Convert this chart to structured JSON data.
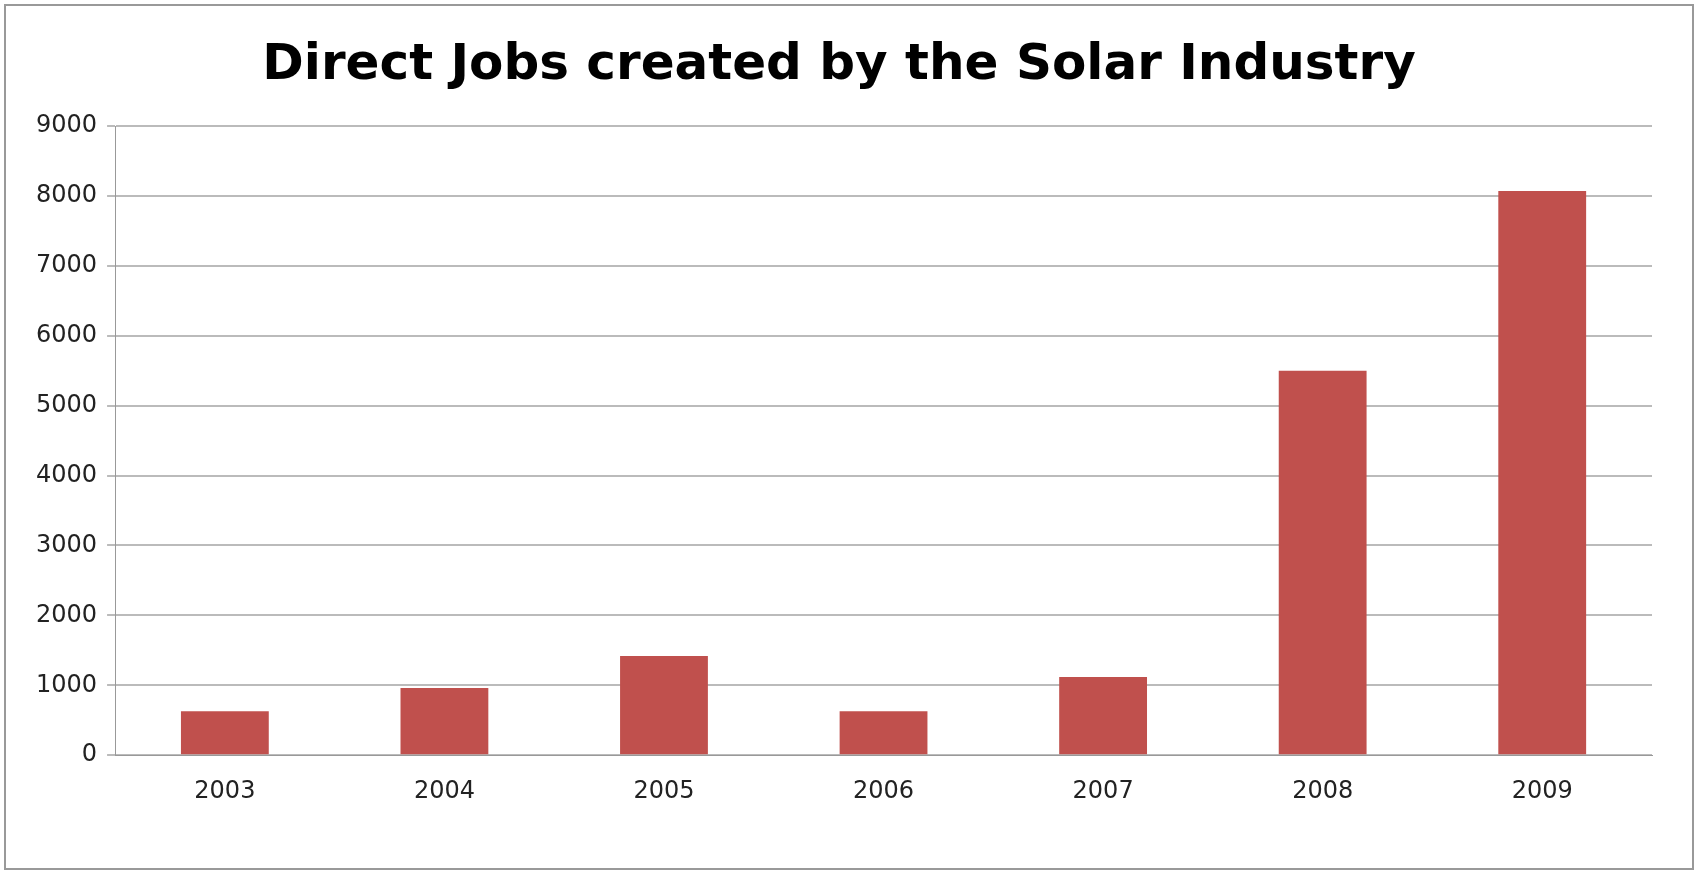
{
  "chart_data": {
    "type": "bar",
    "title": "Direct Jobs created by the Solar Industry",
    "categories": [
      "2003",
      "2004",
      "2005",
      "2006",
      "2007",
      "2008",
      "2009"
    ],
    "values": [
      630,
      960,
      1420,
      630,
      1120,
      5500,
      8070
    ],
    "color": "#c0504d",
    "ylim": [
      0,
      9000
    ],
    "yticks": [
      0,
      1000,
      2000,
      3000,
      4000,
      5000,
      6000,
      7000,
      8000,
      9000
    ],
    "grid": "y"
  }
}
